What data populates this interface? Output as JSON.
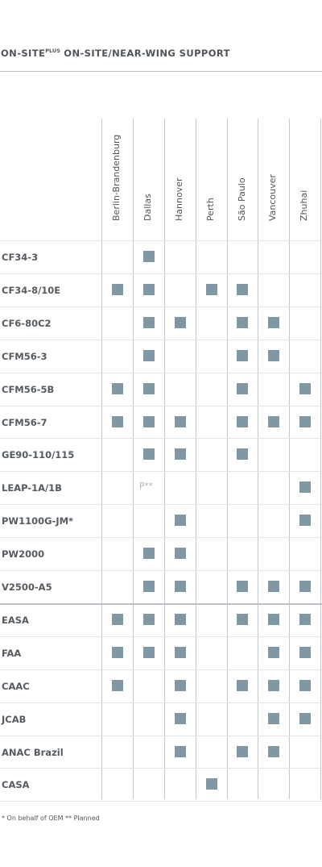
{
  "title": {
    "prefix": "ON-SITE",
    "superscript": "PLUS",
    "suffix": " ON-SITE/NEAR-WING SUPPORT"
  },
  "columns": [
    "Berlin-Brandenburg",
    "Dallas",
    "Hannover",
    "Perth",
    "São Paulo",
    "Vancouver",
    "Zhuhai"
  ],
  "rows": [
    {
      "label": "CF34-3",
      "marks": [
        0,
        1,
        0,
        0,
        0,
        0,
        0
      ]
    },
    {
      "label": "CF34-8/10E",
      "marks": [
        1,
        1,
        0,
        1,
        1,
        0,
        0
      ]
    },
    {
      "label": "CF6-80C2",
      "marks": [
        0,
        1,
        1,
        0,
        1,
        1,
        0
      ]
    },
    {
      "label": "CFM56-3",
      "marks": [
        0,
        1,
        0,
        0,
        1,
        1,
        0
      ]
    },
    {
      "label": "CFM56-5B",
      "marks": [
        1,
        1,
        0,
        0,
        1,
        0,
        1
      ]
    },
    {
      "label": "CFM56-7",
      "marks": [
        1,
        1,
        1,
        0,
        1,
        1,
        1
      ]
    },
    {
      "label": "GE90-110/115",
      "marks": [
        0,
        1,
        1,
        0,
        1,
        0,
        0
      ]
    },
    {
      "label": "LEAP-1A/1B",
      "marks": [
        0,
        "P**",
        0,
        0,
        0,
        0,
        1
      ]
    },
    {
      "label": "PW1100G-JM*",
      "marks": [
        0,
        0,
        1,
        0,
        0,
        0,
        1
      ]
    },
    {
      "label": "PW2000",
      "marks": [
        0,
        1,
        1,
        0,
        0,
        0,
        0
      ]
    },
    {
      "label": "V2500-A5",
      "marks": [
        0,
        1,
        1,
        0,
        1,
        1,
        1
      ]
    },
    {
      "label": "EASA",
      "marks": [
        1,
        1,
        1,
        0,
        1,
        1,
        1
      ]
    },
    {
      "label": "FAA",
      "marks": [
        1,
        1,
        1,
        0,
        0,
        1,
        1
      ]
    },
    {
      "label": "CAAC",
      "marks": [
        1,
        0,
        1,
        0,
        1,
        1,
        1
      ]
    },
    {
      "label": "JCAB",
      "marks": [
        0,
        0,
        1,
        0,
        0,
        1,
        1
      ]
    },
    {
      "label": "ANAC Brazil",
      "marks": [
        0,
        0,
        1,
        0,
        1,
        1,
        0
      ]
    },
    {
      "label": "CASA",
      "marks": [
        0,
        0,
        0,
        1,
        0,
        0,
        0
      ]
    }
  ],
  "footnote": "* On behalf of OEM   ** Planned",
  "colors": {
    "mark": "#7f98a3",
    "text": "#555b61",
    "planned": "#aab2b8",
    "rule": "#b9bfc4"
  }
}
